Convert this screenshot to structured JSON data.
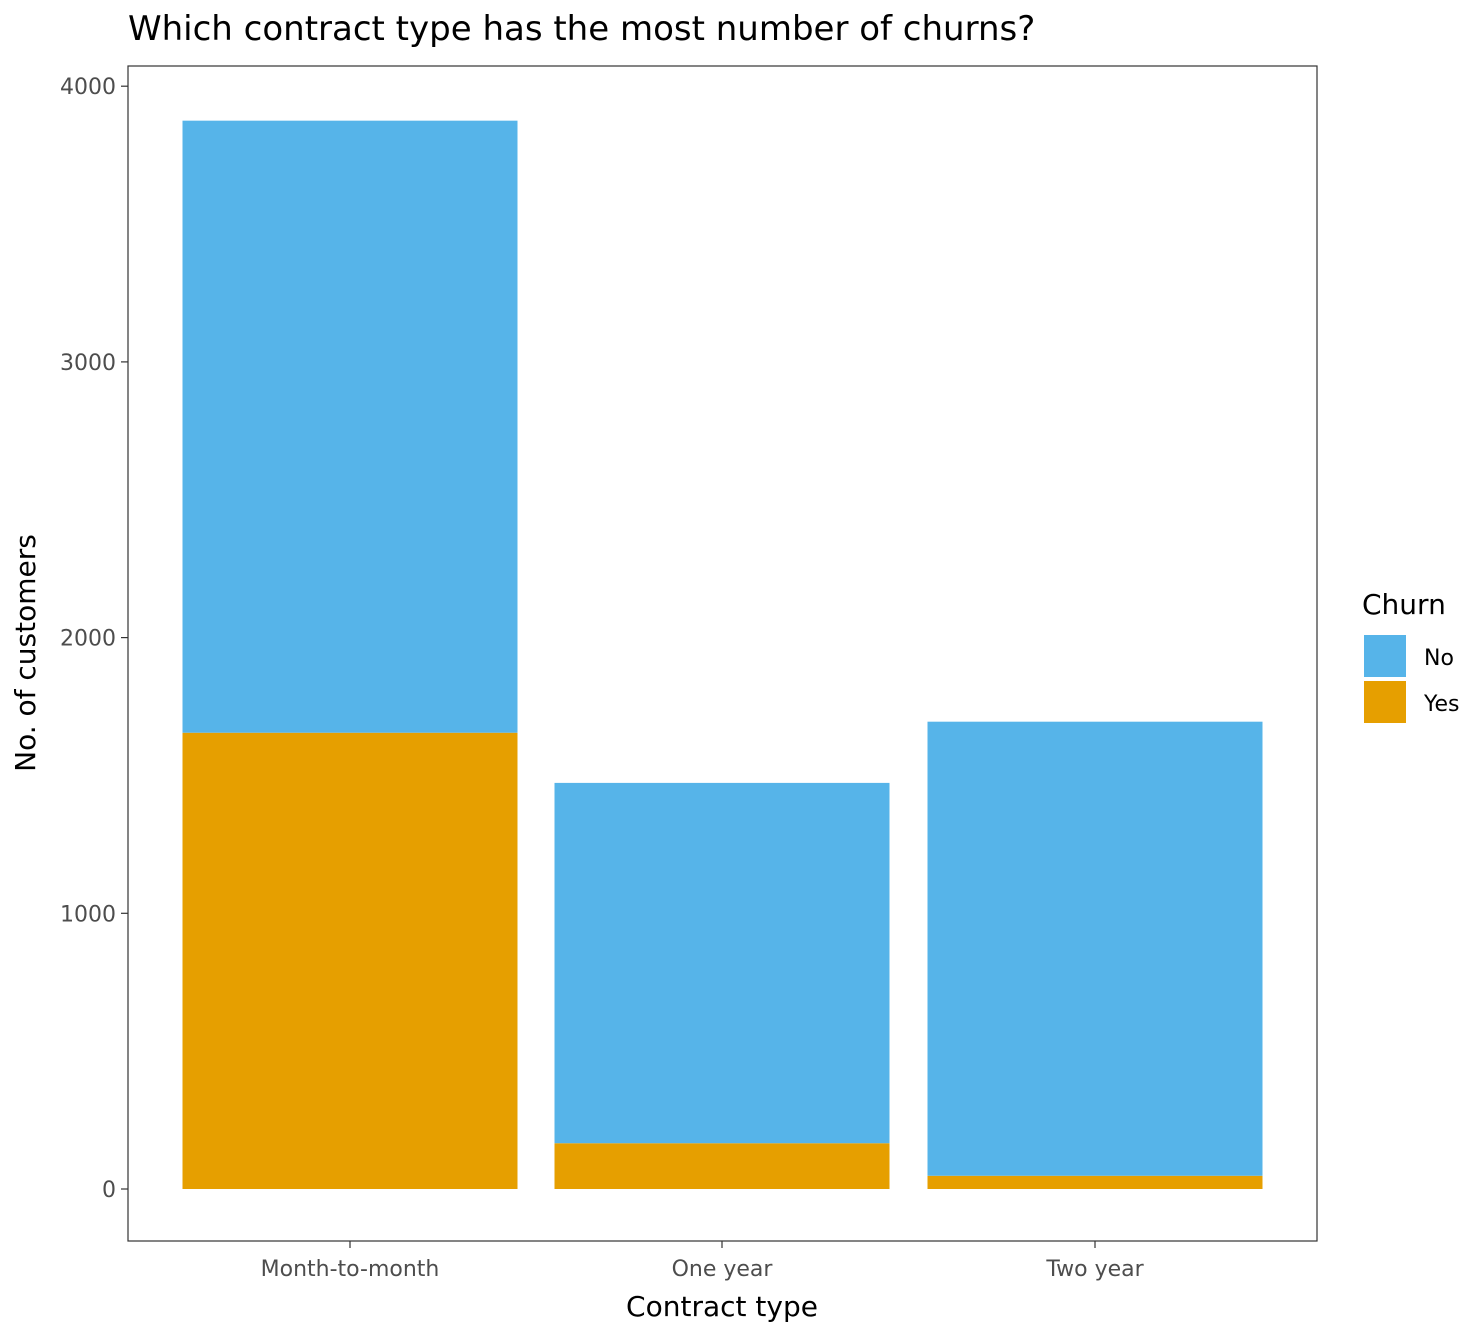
{
  "chart_data": {
    "type": "bar",
    "stacked": true,
    "title": "Which contract type has the most number of churns?",
    "xlabel": "Contract type",
    "ylabel": "No. of customers",
    "categories": [
      "Month-to-month",
      "One year",
      "Two year"
    ],
    "series": [
      {
        "name": "Yes",
        "values": [
          1655,
          166,
          48
        ],
        "color": "#E69F00"
      },
      {
        "name": "No",
        "values": [
          2220,
          1307,
          1647
        ],
        "color": "#56B4E9"
      }
    ],
    "ylim": [
      -190,
      4070
    ],
    "yticks": [
      0,
      1000,
      2000,
      3000,
      4000
    ],
    "grid": false,
    "legend": {
      "title": "Churn",
      "position": "right",
      "items": [
        {
          "label": "No",
          "color": "#56B4E9"
        },
        {
          "label": "Yes",
          "color": "#E69F00"
        }
      ]
    }
  }
}
